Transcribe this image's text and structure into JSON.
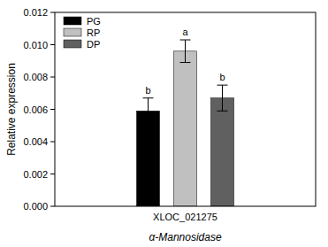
{
  "chart_data": {
    "type": "bar",
    "y_label": "Relative expression",
    "x_label": "α-Mannosidase",
    "categories": [
      "XLOC_021275"
    ],
    "series": [
      {
        "name": "PG",
        "color": "#000000",
        "values": [
          0.0059
        ],
        "errors": [
          0.0008
        ],
        "letters": [
          "b"
        ]
      },
      {
        "name": "RP",
        "color": "#c0c0c0",
        "values": [
          0.0096
        ],
        "errors": [
          0.0007
        ],
        "letters": [
          "a"
        ]
      },
      {
        "name": "DP",
        "color": "#606060",
        "values": [
          0.0067
        ],
        "errors": [
          0.0008
        ],
        "letters": [
          "b"
        ]
      }
    ],
    "ylim": [
      0,
      0.012
    ],
    "yticks": [
      {
        "value": 0,
        "label": "0.000"
      },
      {
        "value": 0.002,
        "label": "0.002"
      },
      {
        "value": 0.004,
        "label": "0.004"
      },
      {
        "value": 0.006,
        "label": "0.006"
      },
      {
        "value": 0.008,
        "label": "0.008"
      },
      {
        "value": 0.01,
        "label": "0.010"
      },
      {
        "value": 0.012,
        "label": "0.012"
      }
    ],
    "grid": false,
    "legend": "upper left"
  }
}
